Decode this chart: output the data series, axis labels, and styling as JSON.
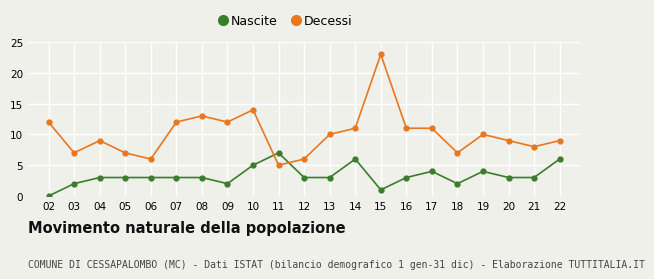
{
  "years": [
    2,
    3,
    4,
    5,
    6,
    7,
    8,
    9,
    10,
    11,
    12,
    13,
    14,
    15,
    16,
    17,
    18,
    19,
    20,
    21,
    22
  ],
  "nascite": [
    0,
    2,
    3,
    3,
    3,
    3,
    3,
    2,
    5,
    7,
    3,
    3,
    6,
    1,
    3,
    4,
    2,
    4,
    3,
    3,
    6
  ],
  "decessi": [
    12,
    7,
    9,
    7,
    6,
    12,
    13,
    12,
    14,
    5,
    6,
    10,
    11,
    23,
    11,
    11,
    7,
    10,
    9,
    8,
    9
  ],
  "nascite_color": "#3a7d2c",
  "decessi_color": "#e87820",
  "background_color": "#f0f0eb",
  "grid_color": "#ffffff",
  "title": "Movimento naturale della popolazione",
  "subtitle": "COMUNE DI CESSAPALOMBO (MC) - Dati ISTAT (bilancio demografico 1 gen-31 dic) - Elaborazione TUTTITALIA.IT",
  "ylim": [
    0,
    25
  ],
  "yticks": [
    0,
    5,
    10,
    15,
    20,
    25
  ],
  "legend_nascite": "Nascite",
  "legend_decessi": "Decessi",
  "title_fontsize": 10.5,
  "subtitle_fontsize": 7.0,
  "tick_fontsize": 7.5,
  "legend_fontsize": 9
}
